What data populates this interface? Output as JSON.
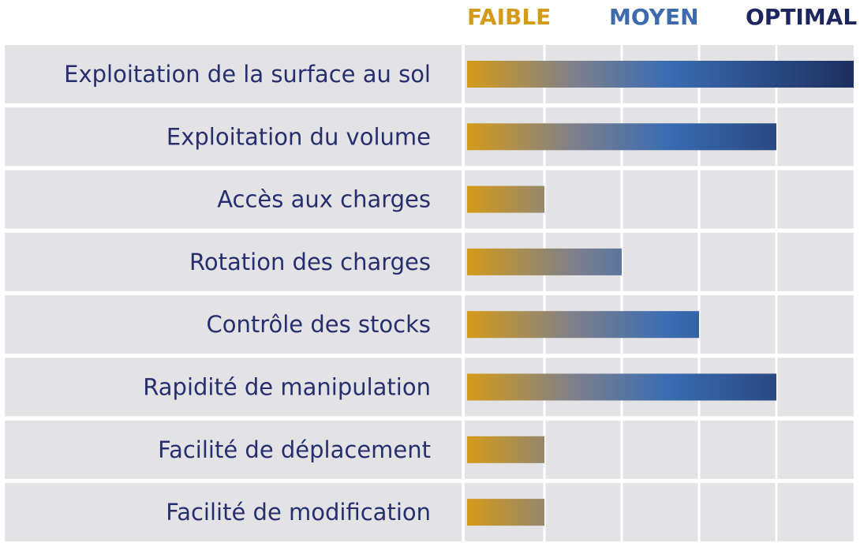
{
  "chart_data": {
    "type": "bar",
    "orientation": "horizontal",
    "legend": [
      {
        "label": "FAIBLE",
        "color": "#d49b1a"
      },
      {
        "label": "MOYEN",
        "color": "#3d69ad"
      },
      {
        "label": "OPTIMAL",
        "color": "#1e2660"
      }
    ],
    "categories": [
      "Exploitation de la surface au sol",
      "Exploitation du volume",
      "Accès aux charges",
      "Rotation des charges",
      "Contrôle des stocks",
      "Rapidité de manipulation",
      "Facilité de déplacement",
      "Facilité de modification"
    ],
    "values": [
      5,
      4,
      1,
      2,
      3,
      4,
      1,
      1
    ],
    "xlim": [
      0,
      5
    ],
    "grid": true,
    "gradient_colors": [
      "#d49b1a",
      "#7d7f8c",
      "#3a6cb2",
      "#1d2f5e"
    ],
    "label_color": "#262e6e",
    "row_background": "#e3e3e6"
  }
}
